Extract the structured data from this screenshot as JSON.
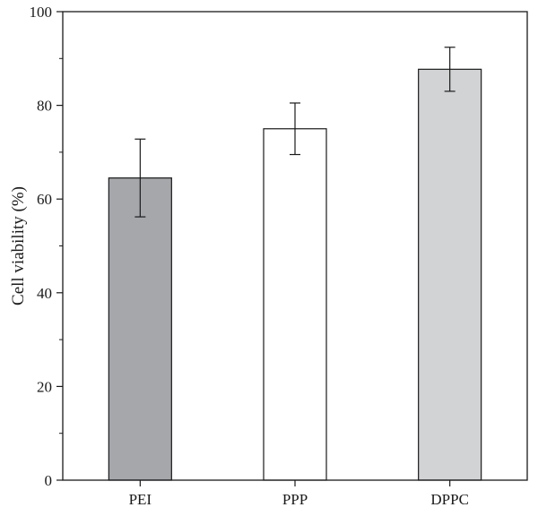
{
  "chart_data": {
    "type": "bar",
    "categories": [
      "PEI",
      "PPP",
      "DPPC"
    ],
    "values": [
      64.5,
      75.0,
      87.7
    ],
    "errors": [
      8.3,
      5.5,
      4.7
    ],
    "bar_colors": [
      "#a6a7ab",
      "#ffffff",
      "#d2d3d5"
    ],
    "title": "",
    "xlabel": "",
    "ylabel": "Cell viability (%)",
    "ylim": [
      0,
      100
    ],
    "yticks": [
      0,
      20,
      40,
      60,
      80,
      100
    ],
    "minor_ytick_step": 10,
    "grid": false,
    "legend": "none",
    "frame": "box"
  }
}
